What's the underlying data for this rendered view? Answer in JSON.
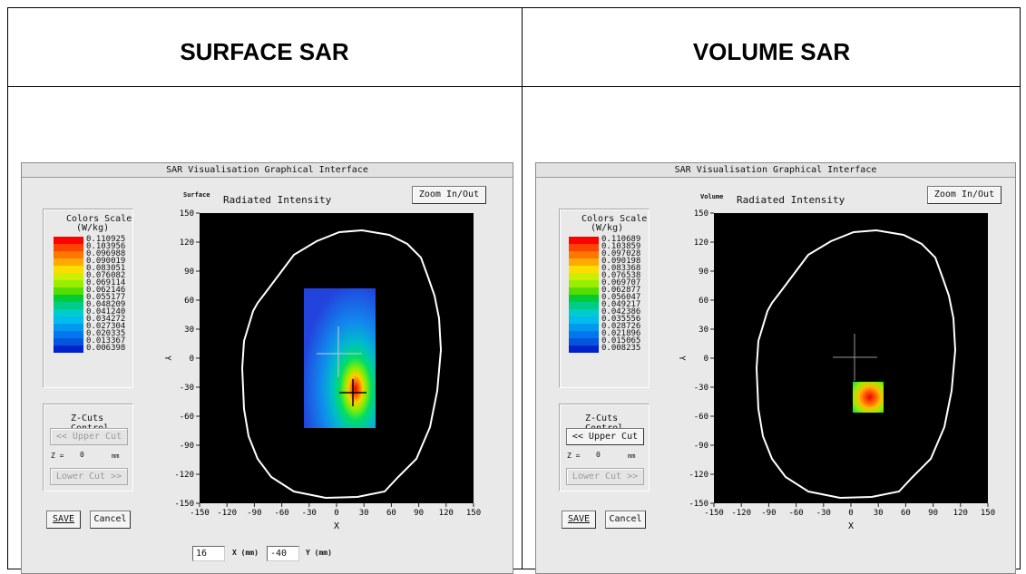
{
  "table": {
    "left_heading": "SURFACE SAR",
    "right_heading": "VOLUME SAR"
  },
  "panels": [
    {
      "window_title": "SAR Visualisation Graphical Interface",
      "mode_label": "Surface",
      "plot_title": "Radiated Intensity",
      "zoom_button": "Zoom In/Out",
      "legend": {
        "title": "Colors Scale",
        "unit": "(W/kg)",
        "values": [
          "0.110925",
          "0.103956",
          "0.096988",
          "0.090019",
          "0.083051",
          "0.076082",
          "0.069114",
          "0.062146",
          "0.055177",
          "0.048209",
          "0.041240",
          "0.034272",
          "0.027304",
          "0.020335",
          "0.013367",
          "0.006398"
        ]
      },
      "zcuts": {
        "title": "Z-Cuts Control",
        "upper_button": "<< Upper Cut",
        "z_label": "Z =",
        "z_value": "0",
        "z_unit": "mm",
        "lower_button": "Lower Cut >>"
      },
      "save_button": "SAVE",
      "cancel_button": "Cancel",
      "x_axis_label": "X",
      "y_axis_label": "Y",
      "x_ticks": [
        "-150",
        "-120",
        "-90",
        "-60",
        "-30",
        "0",
        "30",
        "60",
        "90",
        "120",
        "150"
      ],
      "y_ticks": [
        "150",
        "120",
        "90",
        "60",
        "30",
        "0",
        "-30",
        "-60",
        "-90",
        "-120",
        "-150"
      ],
      "coords": {
        "x_value": "16",
        "x_label": "X (mm)",
        "y_value": "-40",
        "y_label": "Y (mm)"
      }
    },
    {
      "window_title": "SAR Visualisation Graphical Interface",
      "mode_label": "Volume",
      "plot_title": "Radiated Intensity",
      "zoom_button": "Zoom In/Out",
      "legend": {
        "title": "Colors Scale",
        "unit": "(W/kg)",
        "values": [
          "0.110689",
          "0.103859",
          "0.097028",
          "0.090198",
          "0.083368",
          "0.076538",
          "0.069707",
          "0.062877",
          "0.056047",
          "0.049217",
          "0.042386",
          "0.035556",
          "0.028726",
          "0.021896",
          "0.015065",
          "0.008235"
        ]
      },
      "zcuts": {
        "title": "Z-Cuts Control",
        "upper_button": "<< Upper Cut",
        "z_label": "Z =",
        "z_value": "0",
        "z_unit": "mm",
        "lower_button": "Lower Cut >>"
      },
      "save_button": "SAVE",
      "cancel_button": "Cancel",
      "x_axis_label": "X",
      "y_axis_label": "Y",
      "x_ticks": [
        "-150",
        "-120",
        "-90",
        "-60",
        "-30",
        "0",
        "30",
        "60",
        "90",
        "120",
        "150"
      ],
      "y_ticks": [
        "150",
        "120",
        "90",
        "60",
        "30",
        "0",
        "-30",
        "-60",
        "-90",
        "-120",
        "-150"
      ]
    }
  ],
  "legend_colors": [
    "#ff0000",
    "#ff4400",
    "#ff7700",
    "#ffaa00",
    "#ffdd00",
    "#ccee00",
    "#99ee00",
    "#55dd00",
    "#00cc33",
    "#00cc88",
    "#00cccc",
    "#00bbee",
    "#0099ee",
    "#0077ee",
    "#0055dd",
    "#0022cc"
  ]
}
